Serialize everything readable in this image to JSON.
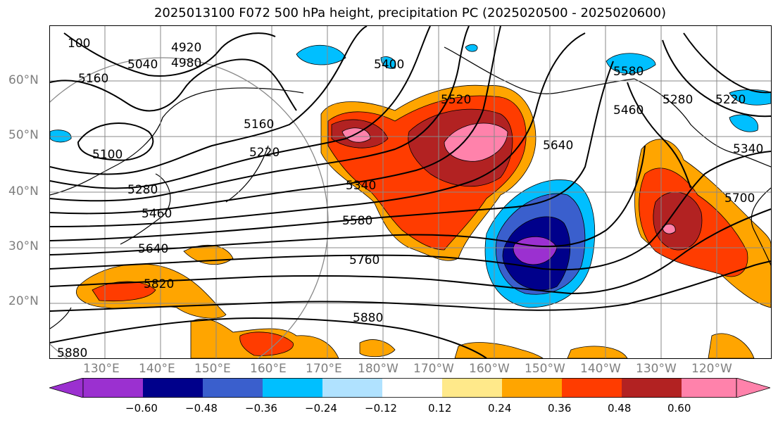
{
  "title": "2025013100 F072 500 hPa height, precipitation PC (2025020500 - 2025020600)",
  "latitudes": [
    "60°N",
    "50°N",
    "40°N",
    "30°N",
    "20°N"
  ],
  "longitudes": [
    "130°E",
    "140°E",
    "150°E",
    "160°E",
    "170°E",
    "180°W",
    "170°W",
    "160°W",
    "150°W",
    "140°W",
    "130°W",
    "120°W"
  ],
  "colorbar": {
    "ticks": [
      "−0.60",
      "−0.48",
      "−0.36",
      "−0.24",
      "−0.12",
      "0.12",
      "0.24",
      "0.36",
      "0.48",
      "0.60"
    ],
    "colors": [
      "#9b30d0",
      "#00008b",
      "#3a5fcd",
      "#00bfff",
      "#b0e2ff",
      "#ffffff",
      "#ffe98a",
      "#ffa500",
      "#ff3c00",
      "#b22222",
      "#ff82ab"
    ]
  },
  "contour_labels": [
    "100",
    "5040",
    "4920",
    "4980",
    "5160",
    "5400",
    "5160",
    "5220",
    "5100",
    "5280",
    "5340",
    "5460",
    "5520",
    "5640",
    "5580",
    "5640",
    "5760",
    "5820",
    "5880",
    "5580",
    "5460",
    "5280",
    "5220",
    "5340",
    "5700",
    "5880"
  ]
}
